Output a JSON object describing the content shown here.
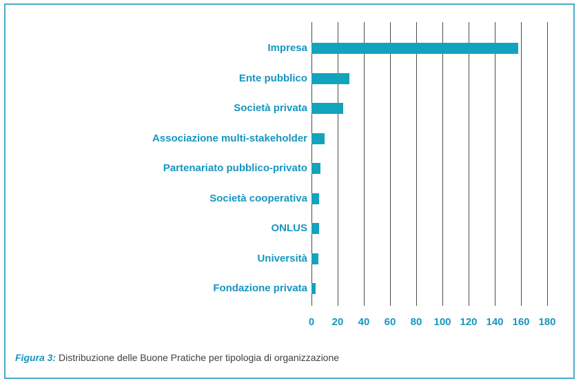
{
  "colors": {
    "bar": "#12a4bc",
    "category_label": "#1795c0",
    "tick_label": "#1795c0",
    "gridline": "#4a4a4a",
    "frame_border": "#4aabc8",
    "caption_label": "#1795c0",
    "caption_text": "#3f3f3f"
  },
  "caption": {
    "label": "Figura 3:",
    "text": " Distribuzione delle Buone Pratiche per tipologia di organizzazione"
  },
  "chart_data": {
    "type": "bar",
    "orientation": "horizontal",
    "title": "",
    "xlabel": "",
    "ylabel": "",
    "grid": true,
    "legend": false,
    "xlim": [
      0,
      180
    ],
    "x_ticks": [
      0,
      20,
      40,
      60,
      80,
      100,
      120,
      140,
      160,
      180
    ],
    "categories": [
      "Impresa",
      "Ente pubblico",
      "Società privata",
      "Associazione multi-stakeholder",
      "Partenariato pubblico-privato",
      "Società cooperativa",
      "ONLUS",
      "Università",
      "Fondazione privata"
    ],
    "values": [
      158,
      29,
      24,
      10,
      7,
      6,
      6,
      5,
      3
    ]
  }
}
